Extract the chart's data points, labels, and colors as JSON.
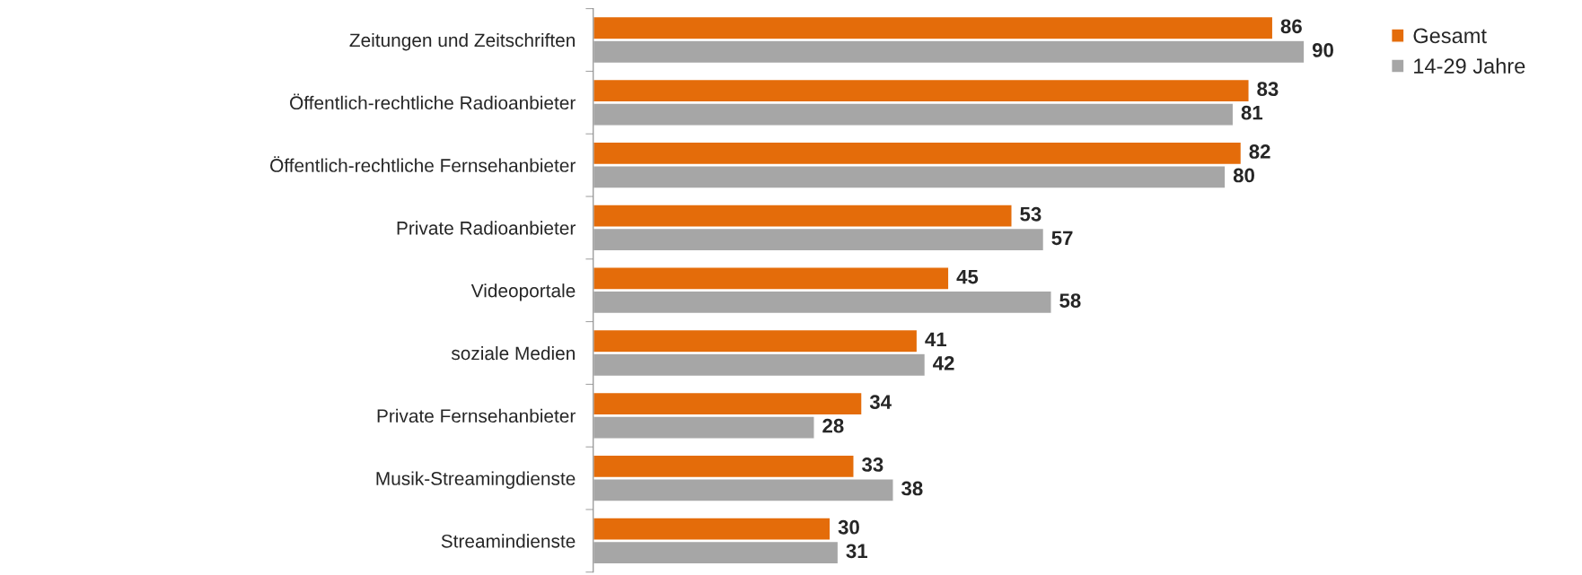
{
  "chart_data": {
    "type": "bar",
    "orientation": "horizontal",
    "categories": [
      "Zeitungen und Zeitschriften",
      "Öffentlich-rechtliche Radioanbieter",
      "Öffentlich-rechtliche Fernsehanbieter",
      "Private Radioanbieter",
      "Videoportale",
      "soziale Medien",
      "Private Fernsehanbieter",
      "Musik-Streamingdienste",
      "Streamindienste"
    ],
    "series": [
      {
        "name": "Gesamt",
        "color": "#e46c0a",
        "values": [
          86,
          83,
          82,
          53,
          45,
          41,
          34,
          33,
          30
        ]
      },
      {
        "name": "14-29 Jahre",
        "color": "#a6a6a6",
        "values": [
          90,
          81,
          80,
          57,
          58,
          42,
          28,
          38,
          31
        ]
      }
    ],
    "data_labels": true,
    "legend": "top right",
    "grid": false
  }
}
